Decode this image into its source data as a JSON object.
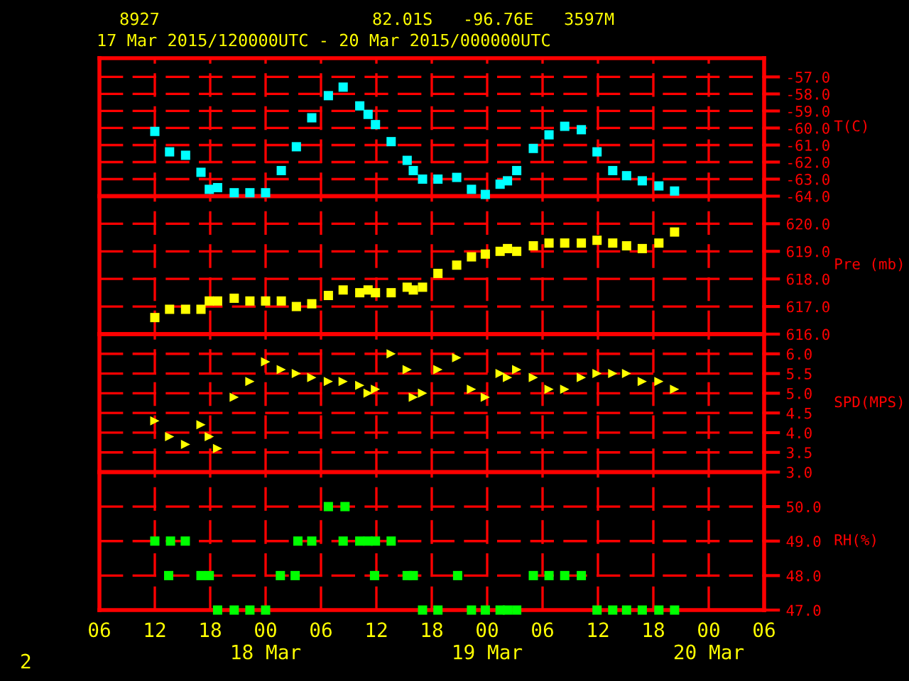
{
  "chart_data": [
    {
      "type": "scatter",
      "title": "8927",
      "subtitle": "17 Mar 2015/120000UTC - 20 Mar 2015/000000UTC",
      "annotations": [
        "82.01S   -96.76E   3597M"
      ],
      "ylabel": "T(C)",
      "marker": "square",
      "grid": true,
      "tick_labels": "y",
      "x": [
        "2015-03-17T12:00",
        "2015-03-17T13:36",
        "2015-03-17T15:20",
        "2015-03-17T17:00",
        "2015-03-17T17:54",
        "2015-03-17T18:48",
        "2015-03-17T20:36",
        "2015-03-17T22:18",
        "2015-03-18T00:00",
        "2015-03-18T01:42",
        "2015-03-18T03:20",
        "2015-03-18T05:00",
        "2015-03-18T06:48",
        "2015-03-18T08:24",
        "2015-03-18T10:12",
        "2015-03-18T11:06",
        "2015-03-18T11:54",
        "2015-03-18T13:36",
        "2015-03-18T15:20",
        "2015-03-18T16:00",
        "2015-03-18T17:00",
        "2015-03-18T18:40",
        "2015-03-18T20:42",
        "2015-03-18T22:18",
        "2015-03-18T23:48",
        "2015-03-19T01:24",
        "2015-03-19T02:12",
        "2015-03-19T03:12",
        "2015-03-19T05:00",
        "2015-03-19T06:42",
        "2015-03-19T08:24",
        "2015-03-19T10:12",
        "2015-03-19T11:54",
        "2015-03-19T13:36",
        "2015-03-19T15:06",
        "2015-03-19T16:48",
        "2015-03-19T18:36",
        "2015-03-19T20:18"
      ],
      "series": [
        {
          "color": "#00ffff",
          "values": [
            -60.2,
            -61.4,
            -61.6,
            -62.6,
            -63.6,
            -63.5,
            -63.8,
            -63.8,
            -63.8,
            -62.5,
            -61.1,
            -59.4,
            -58.1,
            -57.6,
            -58.7,
            -59.2,
            -59.8,
            -60.8,
            -61.9,
            -62.5,
            -63.0,
            -63.0,
            -62.9,
            -63.6,
            -63.9,
            -63.3,
            -63.1,
            -62.5,
            -61.2,
            -60.4,
            -59.9,
            -60.1,
            -61.4,
            -62.5,
            -62.8,
            -63.1,
            -63.4,
            -63.7
          ]
        }
      ],
      "xlim": [
        "2015-03-17T06:00",
        "2015-03-20T06:00"
      ],
      "ylim": [
        -64.0,
        -55.9
      ],
      "yticks": [
        {
          "value": -57,
          "label": "-57.0"
        },
        {
          "value": -58,
          "label": "-58.0"
        },
        {
          "value": -59,
          "label": "-59.0"
        },
        {
          "value": -60,
          "label": "-60.0"
        },
        {
          "value": -61,
          "label": "-61.0"
        },
        {
          "value": -62,
          "label": "-62.0"
        },
        {
          "value": -63,
          "label": "-63.0"
        },
        {
          "value": -64,
          "label": "-64.0"
        }
      ]
    },
    {
      "type": "scatter",
      "ylabel": "Pre (mb)",
      "marker": "square",
      "grid": true,
      "tick_labels": "y",
      "x": [
        "2015-03-17T12:00",
        "2015-03-17T13:36",
        "2015-03-17T15:20",
        "2015-03-17T17:00",
        "2015-03-17T17:54",
        "2015-03-17T18:48",
        "2015-03-17T20:36",
        "2015-03-17T22:18",
        "2015-03-18T00:00",
        "2015-03-18T01:42",
        "2015-03-18T03:20",
        "2015-03-18T05:00",
        "2015-03-18T06:48",
        "2015-03-18T08:24",
        "2015-03-18T10:12",
        "2015-03-18T11:06",
        "2015-03-18T11:54",
        "2015-03-18T13:36",
        "2015-03-18T15:20",
        "2015-03-18T16:00",
        "2015-03-18T17:00",
        "2015-03-18T18:40",
        "2015-03-18T20:42",
        "2015-03-18T22:18",
        "2015-03-18T23:48",
        "2015-03-19T01:24",
        "2015-03-19T02:12",
        "2015-03-19T03:12",
        "2015-03-19T05:00",
        "2015-03-19T06:42",
        "2015-03-19T08:24",
        "2015-03-19T10:12",
        "2015-03-19T11:54",
        "2015-03-19T13:36",
        "2015-03-19T15:06",
        "2015-03-19T16:48",
        "2015-03-19T18:36",
        "2015-03-19T20:18"
      ],
      "series": [
        {
          "color": "#ffff00",
          "values": [
            616.6,
            616.9,
            616.9,
            616.9,
            617.2,
            617.2,
            617.3,
            617.2,
            617.2,
            617.2,
            617.0,
            617.1,
            617.4,
            617.6,
            617.5,
            617.6,
            617.5,
            617.5,
            617.7,
            617.6,
            617.7,
            618.2,
            618.5,
            618.8,
            618.9,
            619.0,
            619.1,
            619.0,
            619.2,
            619.3,
            619.3,
            619.3,
            619.4,
            619.3,
            619.2,
            619.1,
            619.3,
            619.7
          ]
        }
      ],
      "xlim": [
        "2015-03-17T06:00",
        "2015-03-20T06:00"
      ],
      "ylim": [
        616.0,
        621.0
      ],
      "yticks": [
        {
          "value": 620,
          "label": "620.0"
        },
        {
          "value": 619,
          "label": "619.0"
        },
        {
          "value": 618,
          "label": "618.0"
        },
        {
          "value": 617,
          "label": "617.0"
        },
        {
          "value": 616,
          "label": "616.0"
        }
      ]
    },
    {
      "type": "scatter",
      "ylabel": "SPD(MPS)",
      "marker": "triangle",
      "grid": true,
      "tick_labels": "y",
      "x": [
        "2015-03-17T12:00",
        "2015-03-17T13:36",
        "2015-03-17T15:20",
        "2015-03-17T17:00",
        "2015-03-17T17:54",
        "2015-03-17T18:48",
        "2015-03-17T20:36",
        "2015-03-17T22:18",
        "2015-03-18T00:00",
        "2015-03-18T01:42",
        "2015-03-18T03:20",
        "2015-03-18T05:00",
        "2015-03-18T06:48",
        "2015-03-18T08:24",
        "2015-03-18T10:12",
        "2015-03-18T11:06",
        "2015-03-18T11:54",
        "2015-03-18T13:36",
        "2015-03-18T15:20",
        "2015-03-18T16:00",
        "2015-03-18T17:00",
        "2015-03-18T18:40",
        "2015-03-18T20:42",
        "2015-03-18T22:18",
        "2015-03-18T23:48",
        "2015-03-19T01:24",
        "2015-03-19T02:12",
        "2015-03-19T03:12",
        "2015-03-19T05:00",
        "2015-03-19T06:42",
        "2015-03-19T08:24",
        "2015-03-19T10:12",
        "2015-03-19T11:54",
        "2015-03-19T13:36",
        "2015-03-19T15:06",
        "2015-03-19T16:48",
        "2015-03-19T18:36",
        "2015-03-19T20:18"
      ],
      "series": [
        {
          "color": "#ffff00",
          "values": [
            4.3,
            3.9,
            3.7,
            4.2,
            3.9,
            3.6,
            4.9,
            5.3,
            5.8,
            5.6,
            5.5,
            5.4,
            5.3,
            5.3,
            5.2,
            5.0,
            5.1,
            6.0,
            5.6,
            4.9,
            5.0,
            5.6,
            5.9,
            5.1,
            4.9,
            5.5,
            5.4,
            5.6,
            5.4,
            5.1,
            5.1,
            5.4,
            5.5,
            5.5,
            5.5,
            5.3,
            5.3,
            5.1
          ]
        }
      ],
      "xlim": [
        "2015-03-17T06:00",
        "2015-03-20T06:00"
      ],
      "ylim": [
        3.0,
        6.5
      ],
      "yticks": [
        {
          "value": 6,
          "label": "6.0"
        },
        5.5,
        {
          "value": 5,
          "label": "5.0"
        },
        4.5,
        {
          "value": 4,
          "label": "4.0"
        },
        3.5,
        {
          "value": 3,
          "label": "3.0"
        }
      ]
    },
    {
      "type": "scatter",
      "ylabel": "RH(%)",
      "marker": "square",
      "grid": true,
      "annotations": [
        "2"
      ],
      "x": [
        "2015-03-17T12:00",
        "2015-03-17T13:30",
        "2015-03-17T13:42",
        "2015-03-17T15:18",
        "2015-03-17T17:00",
        "2015-03-17T17:54",
        "2015-03-17T18:48",
        "2015-03-17T20:36",
        "2015-03-17T22:18",
        "2015-03-18T00:00",
        "2015-03-18T01:36",
        "2015-03-18T03:12",
        "2015-03-18T03:30",
        "2015-03-18T05:00",
        "2015-03-18T06:48",
        "2015-03-18T08:24",
        "2015-03-18T08:36",
        "2015-03-18T10:12",
        "2015-03-18T11:06",
        "2015-03-18T11:48",
        "2015-03-18T11:54",
        "2015-03-18T13:36",
        "2015-03-18T15:20",
        "2015-03-18T16:00",
        "2015-03-18T17:00",
        "2015-03-18T18:40",
        "2015-03-18T20:48",
        "2015-03-18T22:18",
        "2015-03-18T23:48",
        "2015-03-19T01:24",
        "2015-03-19T02:12",
        "2015-03-19T03:12",
        "2015-03-19T05:00",
        "2015-03-19T06:42",
        "2015-03-19T08:24",
        "2015-03-19T10:12",
        "2015-03-19T11:54",
        "2015-03-19T13:36",
        "2015-03-19T15:06",
        "2015-03-19T16:48",
        "2015-03-19T18:36",
        "2015-03-19T20:18"
      ],
      "series": [
        {
          "color": "#00ff00",
          "values": [
            49,
            48,
            49,
            49,
            48,
            48,
            47,
            47,
            47,
            47,
            48,
            48,
            49,
            49,
            50,
            49,
            50,
            49,
            49,
            48,
            49,
            49,
            48,
            48,
            47,
            47,
            48,
            47,
            47,
            47,
            47,
            47,
            48,
            48,
            48,
            48,
            47,
            47,
            47,
            47,
            47,
            47
          ]
        }
      ],
      "xlim": [
        "2015-03-17T06:00",
        "2015-03-20T06:00"
      ],
      "ylim": [
        47.0,
        51.0
      ],
      "yticks": [
        {
          "value": 50,
          "label": "50.0"
        },
        {
          "value": 49,
          "label": "49.0"
        },
        {
          "value": 48,
          "label": "48.0"
        },
        {
          "value": 47,
          "label": "47.0"
        }
      ],
      "xticks": [
        {
          "value": "2015-03-17T06:00",
          "label": "06"
        },
        {
          "value": "2015-03-17T12:00",
          "label": "12"
        },
        {
          "value": "2015-03-17T18:00",
          "label": "18"
        },
        {
          "value": "2015-03-18T00:00",
          "label": "00\n18 Mar"
        },
        {
          "value": "2015-03-18T06:00",
          "label": "06"
        },
        {
          "value": "2015-03-18T12:00",
          "label": "12"
        },
        {
          "value": "2015-03-18T18:00",
          "label": "18"
        },
        {
          "value": "2015-03-19T00:00",
          "label": "00\n19 Mar"
        },
        {
          "value": "2015-03-19T06:00",
          "label": "06"
        },
        {
          "value": "2015-03-19T12:00",
          "label": "12"
        },
        {
          "value": "2015-03-19T18:00",
          "label": "18"
        },
        {
          "value": "2015-03-20T00:00",
          "label": "00\n20 Mar"
        },
        {
          "value": "2015-03-20T06:00",
          "label": "06"
        }
      ]
    }
  ]
}
